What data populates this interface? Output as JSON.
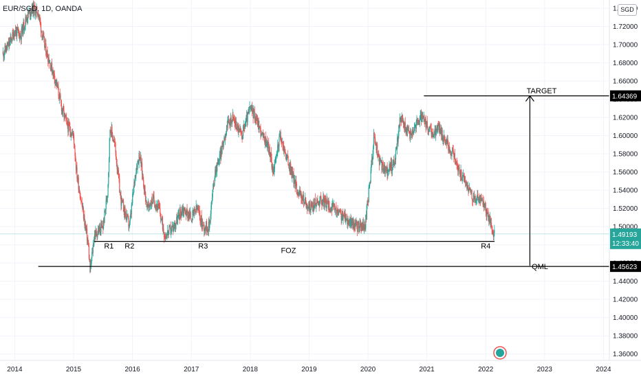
{
  "symbol_label": "EUR/SGD, 1D, OANDA",
  "currency_badge": "SGD",
  "colors": {
    "up": "#26a69a",
    "down": "#ef5350",
    "grid": "#f0f3fa",
    "axis": "#e0e3eb",
    "text": "#131722"
  },
  "chart_data": {
    "type": "candlestick",
    "title": "",
    "xlabel": "",
    "ylabel": "",
    "x_ticks": [
      "2014",
      "2015",
      "2016",
      "2017",
      "2018",
      "2019",
      "2020",
      "2021",
      "2022",
      "2023",
      "2024"
    ],
    "y_ticks": [
      "1.36000",
      "1.38000",
      "1.40000",
      "1.42000",
      "1.44000",
      "1.46000",
      "1.48000",
      "1.50000",
      "1.52000",
      "1.54000",
      "1.56000",
      "1.58000",
      "1.60000",
      "1.62000",
      "1.64000",
      "1.66000",
      "1.68000",
      "1.70000",
      "1.72000",
      "1.74000"
    ],
    "ylim": [
      1.353,
      1.749
    ],
    "xlim": [
      2013.75,
      2024.1
    ],
    "price_path": [
      [
        2013.8,
        1.69
      ],
      [
        2013.9,
        1.7
      ],
      [
        2014.0,
        1.715
      ],
      [
        2014.1,
        1.71
      ],
      [
        2014.2,
        1.73
      ],
      [
        2014.3,
        1.74
      ],
      [
        2014.4,
        1.735
      ],
      [
        2014.5,
        1.7
      ],
      [
        2014.6,
        1.68
      ],
      [
        2014.7,
        1.66
      ],
      [
        2014.8,
        1.63
      ],
      [
        2014.9,
        1.61
      ],
      [
        2015.0,
        1.6
      ],
      [
        2015.05,
        1.56
      ],
      [
        2015.15,
        1.52
      ],
      [
        2015.25,
        1.48
      ],
      [
        2015.28,
        1.45
      ],
      [
        2015.35,
        1.49
      ],
      [
        2015.42,
        1.495
      ],
      [
        2015.5,
        1.5
      ],
      [
        2015.58,
        1.54
      ],
      [
        2015.62,
        1.61
      ],
      [
        2015.7,
        1.59
      ],
      [
        2015.8,
        1.53
      ],
      [
        2015.95,
        1.5
      ],
      [
        2016.05,
        1.56
      ],
      [
        2016.12,
        1.58
      ],
      [
        2016.25,
        1.52
      ],
      [
        2016.35,
        1.53
      ],
      [
        2016.45,
        1.52
      ],
      [
        2016.55,
        1.49
      ],
      [
        2016.7,
        1.5
      ],
      [
        2016.85,
        1.52
      ],
      [
        2017.0,
        1.51
      ],
      [
        2017.1,
        1.52
      ],
      [
        2017.2,
        1.5
      ],
      [
        2017.3,
        1.5
      ],
      [
        2017.4,
        1.56
      ],
      [
        2017.5,
        1.58
      ],
      [
        2017.6,
        1.61
      ],
      [
        2017.7,
        1.62
      ],
      [
        2017.85,
        1.6
      ],
      [
        2018.0,
        1.63
      ],
      [
        2018.1,
        1.62
      ],
      [
        2018.2,
        1.6
      ],
      [
        2018.3,
        1.59
      ],
      [
        2018.4,
        1.56
      ],
      [
        2018.5,
        1.6
      ],
      [
        2018.6,
        1.58
      ],
      [
        2018.7,
        1.56
      ],
      [
        2018.8,
        1.54
      ],
      [
        2018.9,
        1.53
      ],
      [
        2019.0,
        1.52
      ],
      [
        2019.2,
        1.53
      ],
      [
        2019.4,
        1.52
      ],
      [
        2019.6,
        1.51
      ],
      [
        2019.8,
        1.5
      ],
      [
        2019.95,
        1.5
      ],
      [
        2020.05,
        1.56
      ],
      [
        2020.1,
        1.6
      ],
      [
        2020.2,
        1.57
      ],
      [
        2020.3,
        1.56
      ],
      [
        2020.45,
        1.57
      ],
      [
        2020.55,
        1.62
      ],
      [
        2020.7,
        1.6
      ],
      [
        2020.8,
        1.61
      ],
      [
        2020.9,
        1.62
      ],
      [
        2021.0,
        1.61
      ],
      [
        2021.1,
        1.6
      ],
      [
        2021.2,
        1.61
      ],
      [
        2021.35,
        1.59
      ],
      [
        2021.45,
        1.58
      ],
      [
        2021.55,
        1.56
      ],
      [
        2021.65,
        1.55
      ],
      [
        2021.8,
        1.53
      ],
      [
        2021.9,
        1.53
      ],
      [
        2022.0,
        1.52
      ],
      [
        2022.1,
        1.5
      ],
      [
        2022.15,
        1.491
      ]
    ],
    "series": [
      {
        "name": "EUR/SGD",
        "last": "1.49193",
        "countdown": "12:33:40"
      }
    ],
    "levels": [
      {
        "id": "target",
        "price": 1.64369,
        "price_label": "1.64369",
        "x_from": 2020.95
      },
      {
        "id": "foz",
        "price": 1.4838,
        "x_from": 2015.35,
        "x_to": 2022.15
      },
      {
        "id": "qml",
        "price": 1.45623,
        "price_label": "1.45623",
        "x_from": 2014.4
      }
    ],
    "annotations": [
      {
        "text": "R1",
        "x": 2015.6,
        "y": 1.476
      },
      {
        "text": "R2",
        "x": 2015.95,
        "y": 1.476
      },
      {
        "text": "R3",
        "x": 2017.2,
        "y": 1.476
      },
      {
        "text": "R4",
        "x": 2022.0,
        "y": 1.476
      },
      {
        "text": "FOZ",
        "x": 2018.65,
        "y": 1.471
      },
      {
        "text": "TARGET",
        "x": 2022.95,
        "y": 1.6465
      },
      {
        "text": "QML",
        "x": 2022.92,
        "y": 1.4535
      }
    ],
    "arrow": {
      "x": 2022.75,
      "y_from": 1.457,
      "y_to": 1.6437
    },
    "legend": "none",
    "grid": true
  }
}
